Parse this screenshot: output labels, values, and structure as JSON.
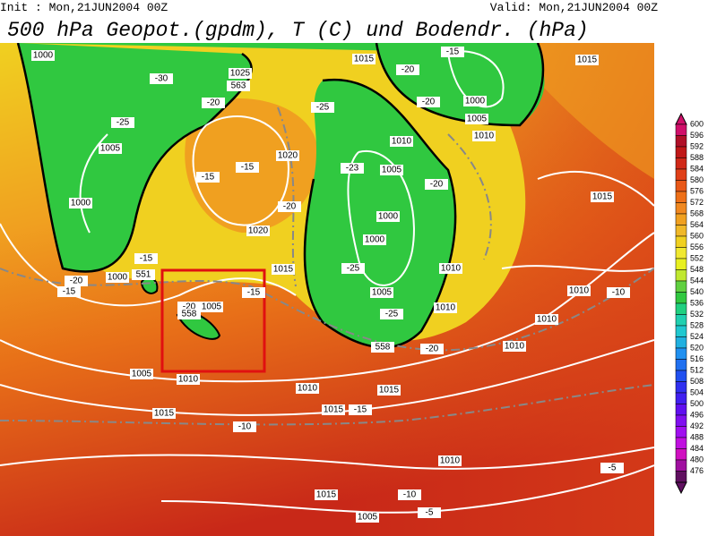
{
  "header": {
    "init": "Init : Mon,21JUN2004 00Z",
    "valid": "Valid: Mon,21JUN2004 00Z",
    "title": "500 hPa Geopot.(gpdm), T (C) und Bodendr. (hPa)"
  },
  "colorbar": {
    "levels": [
      600,
      596,
      592,
      588,
      584,
      580,
      576,
      572,
      568,
      564,
      560,
      556,
      552,
      548,
      544,
      540,
      536,
      532,
      528,
      524,
      520,
      516,
      512,
      508,
      504,
      500,
      496,
      492,
      488,
      484,
      480,
      476
    ]
  },
  "map": {
    "labels": [
      "1000",
      "-30",
      "-25",
      "1005",
      "1000",
      "1025",
      "563",
      "-20",
      "-15",
      "1020",
      "-15",
      "1020",
      "-20",
      "-25",
      "1015",
      "-20",
      "-15",
      "1000",
      "1005",
      "1010",
      "-20",
      "1010",
      "-23",
      "1005",
      "-20",
      "1000",
      "1000",
      "-25",
      "1015",
      "-15",
      "1005",
      "-25",
      "1010",
      "1010",
      "-20",
      "558",
      "1015",
      "1015",
      "1010",
      "-10",
      "1010",
      "1010",
      "1015",
      "1015",
      "-15",
      "1010",
      "-20",
      "1005",
      "558",
      "-15",
      "551",
      "1000",
      "-20",
      "-15",
      "1005",
      "1010",
      "1015",
      "-10",
      "1010",
      "1015",
      "-10",
      "1005",
      "-5",
      "-5"
    ]
  }
}
